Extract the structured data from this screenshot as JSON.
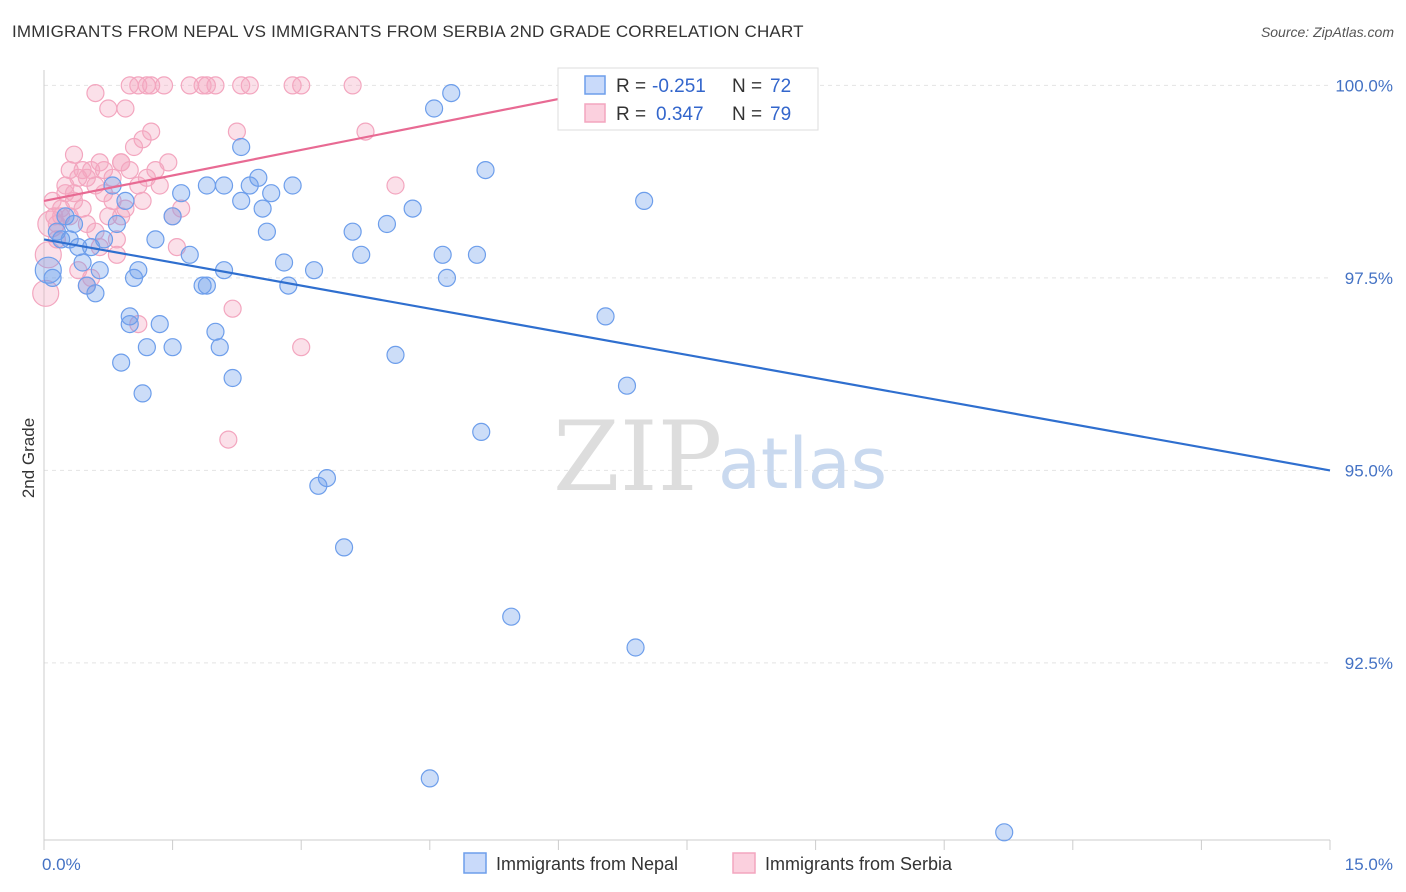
{
  "chart_data": {
    "type": "scatter",
    "title": "IMMIGRANTS FROM NEPAL VS IMMIGRANTS FROM SERBIA 2ND GRADE CORRELATION CHART",
    "source": "Source: ZipAtlas.com",
    "xlabel": "",
    "ylabel": "2nd Grade",
    "xlim": [
      0,
      15
    ],
    "ylim": [
      90.2,
      100.2
    ],
    "x_tick_labels": [
      "0.0%",
      "15.0%"
    ],
    "y_ticks": [
      100,
      97.5,
      95,
      92.5
    ],
    "y_tick_labels": [
      "100.0%",
      "97.5%",
      "95.0%",
      "92.5%"
    ],
    "grid": true,
    "legend_position": "bottom",
    "watermark": {
      "zip": "ZIP",
      "atlas": "atlas"
    },
    "series": [
      {
        "name": "Immigrants from Nepal",
        "color": "#6d9eeb",
        "line_color": "#2f6fcf",
        "stats": {
          "r_label": "R =",
          "r": "-0.251",
          "n_label": "N =",
          "n": "72"
        },
        "trend": [
          [
            0,
            98.0
          ],
          [
            15,
            95.0
          ]
        ],
        "points": [
          [
            0.05,
            97.6
          ],
          [
            0.1,
            97.5
          ],
          [
            0.15,
            98.1
          ],
          [
            0.2,
            98.0
          ],
          [
            0.25,
            98.3
          ],
          [
            0.3,
            98.0
          ],
          [
            0.45,
            97.7
          ],
          [
            0.5,
            97.4
          ],
          [
            0.55,
            97.9
          ],
          [
            0.7,
            98.0
          ],
          [
            0.8,
            98.7
          ],
          [
            0.85,
            98.2
          ],
          [
            0.95,
            98.5
          ],
          [
            0.6,
            97.3
          ],
          [
            1.0,
            97.0
          ],
          [
            1.05,
            97.5
          ],
          [
            1.1,
            97.6
          ],
          [
            1.15,
            96.0
          ],
          [
            1.3,
            98.0
          ],
          [
            1.5,
            98.3
          ],
          [
            1.6,
            98.6
          ],
          [
            1.7,
            97.8
          ],
          [
            1.85,
            97.4
          ],
          [
            1.9,
            98.7
          ],
          [
            2.0,
            96.8
          ],
          [
            2.05,
            96.6
          ],
          [
            2.1,
            97.6
          ],
          [
            2.2,
            96.2
          ],
          [
            2.1,
            98.7
          ],
          [
            2.3,
            99.2
          ],
          [
            2.4,
            98.7
          ],
          [
            2.5,
            98.8
          ],
          [
            2.55,
            98.4
          ],
          [
            2.6,
            98.1
          ],
          [
            2.65,
            98.6
          ],
          [
            2.8,
            97.7
          ],
          [
            2.85,
            97.4
          ],
          [
            2.9,
            98.7
          ],
          [
            3.15,
            97.6
          ],
          [
            3.2,
            94.8
          ],
          [
            3.3,
            94.9
          ],
          [
            3.5,
            94.0
          ],
          [
            3.6,
            98.1
          ],
          [
            3.7,
            97.8
          ],
          [
            1.5,
            96.6
          ],
          [
            1.35,
            96.9
          ],
          [
            0.65,
            97.6
          ],
          [
            0.9,
            96.4
          ],
          [
            1.0,
            96.9
          ],
          [
            4.0,
            98.2
          ],
          [
            4.1,
            96.5
          ],
          [
            4.3,
            98.4
          ],
          [
            4.5,
            91.0
          ],
          [
            4.55,
            99.7
          ],
          [
            4.65,
            97.8
          ],
          [
            4.7,
            97.5
          ],
          [
            4.75,
            99.9
          ],
          [
            5.05,
            97.8
          ],
          [
            5.1,
            95.5
          ],
          [
            5.15,
            98.9
          ],
          [
            5.45,
            93.1
          ],
          [
            6.2,
            100.0
          ],
          [
            6.55,
            97.0
          ],
          [
            6.8,
            96.1
          ],
          [
            6.9,
            92.7
          ],
          [
            7.0,
            98.5
          ],
          [
            11.2,
            90.3
          ],
          [
            1.2,
            96.6
          ],
          [
            2.3,
            98.5
          ],
          [
            1.9,
            97.4
          ],
          [
            0.35,
            98.2
          ],
          [
            0.4,
            97.9
          ]
        ]
      },
      {
        "name": "Immigrants from Serbia",
        "color": "#f3a6bf",
        "line_color": "#e86a93",
        "stats": {
          "r_label": "R =",
          "r": "0.347",
          "n_label": "N =",
          "n": "79"
        },
        "trend": [
          [
            0,
            98.5
          ],
          [
            6.8,
            100.0
          ]
        ],
        "points": [
          [
            0.02,
            97.3
          ],
          [
            0.05,
            97.8
          ],
          [
            0.08,
            98.2
          ],
          [
            0.12,
            98.3
          ],
          [
            0.15,
            98.0
          ],
          [
            0.2,
            98.4
          ],
          [
            0.25,
            98.6
          ],
          [
            0.3,
            98.3
          ],
          [
            0.35,
            98.5
          ],
          [
            0.4,
            98.8
          ],
          [
            0.45,
            98.4
          ],
          [
            0.5,
            98.2
          ],
          [
            0.55,
            98.9
          ],
          [
            0.6,
            98.7
          ],
          [
            0.65,
            99.0
          ],
          [
            0.7,
            98.6
          ],
          [
            0.75,
            98.3
          ],
          [
            0.8,
            98.8
          ],
          [
            0.85,
            98.0
          ],
          [
            0.9,
            98.3
          ],
          [
            0.95,
            98.4
          ],
          [
            1.0,
            98.9
          ],
          [
            1.05,
            99.2
          ],
          [
            1.1,
            98.7
          ],
          [
            1.15,
            99.3
          ],
          [
            1.2,
            98.8
          ],
          [
            1.25,
            99.4
          ],
          [
            1.3,
            98.9
          ],
          [
            1.35,
            98.7
          ],
          [
            1.4,
            100.0
          ],
          [
            1.45,
            99.0
          ],
          [
            1.5,
            98.3
          ],
          [
            1.55,
            97.9
          ],
          [
            0.4,
            97.6
          ],
          [
            0.5,
            97.4
          ],
          [
            0.35,
            99.1
          ],
          [
            0.6,
            99.9
          ],
          [
            0.75,
            99.7
          ],
          [
            0.9,
            99.0
          ],
          [
            0.95,
            99.7
          ],
          [
            1.0,
            100.0
          ],
          [
            1.1,
            100.0
          ],
          [
            1.2,
            100.0
          ],
          [
            1.25,
            100.0
          ],
          [
            1.7,
            100.0
          ],
          [
            1.85,
            100.0
          ],
          [
            1.9,
            100.0
          ],
          [
            2.0,
            100.0
          ],
          [
            2.2,
            97.1
          ],
          [
            2.25,
            99.4
          ],
          [
            2.3,
            100.0
          ],
          [
            2.4,
            100.0
          ],
          [
            2.15,
            95.4
          ],
          [
            2.9,
            100.0
          ],
          [
            3.0,
            100.0
          ],
          [
            3.0,
            96.6
          ],
          [
            3.6,
            100.0
          ],
          [
            3.75,
            99.4
          ],
          [
            4.1,
            98.7
          ],
          [
            6.3,
            99.7
          ],
          [
            6.75,
            100.0
          ],
          [
            1.1,
            96.9
          ],
          [
            0.85,
            97.8
          ],
          [
            0.7,
            98.9
          ],
          [
            0.8,
            98.5
          ],
          [
            0.55,
            97.5
          ],
          [
            0.65,
            97.9
          ],
          [
            0.45,
            98.9
          ],
          [
            0.3,
            98.9
          ],
          [
            0.2,
            98.3
          ],
          [
            0.15,
            98.2
          ],
          [
            0.1,
            98.5
          ],
          [
            0.25,
            98.7
          ],
          [
            0.5,
            98.8
          ],
          [
            0.9,
            99.0
          ],
          [
            1.15,
            98.5
          ],
          [
            1.6,
            98.4
          ],
          [
            0.6,
            98.1
          ],
          [
            0.35,
            98.6
          ]
        ]
      }
    ]
  }
}
